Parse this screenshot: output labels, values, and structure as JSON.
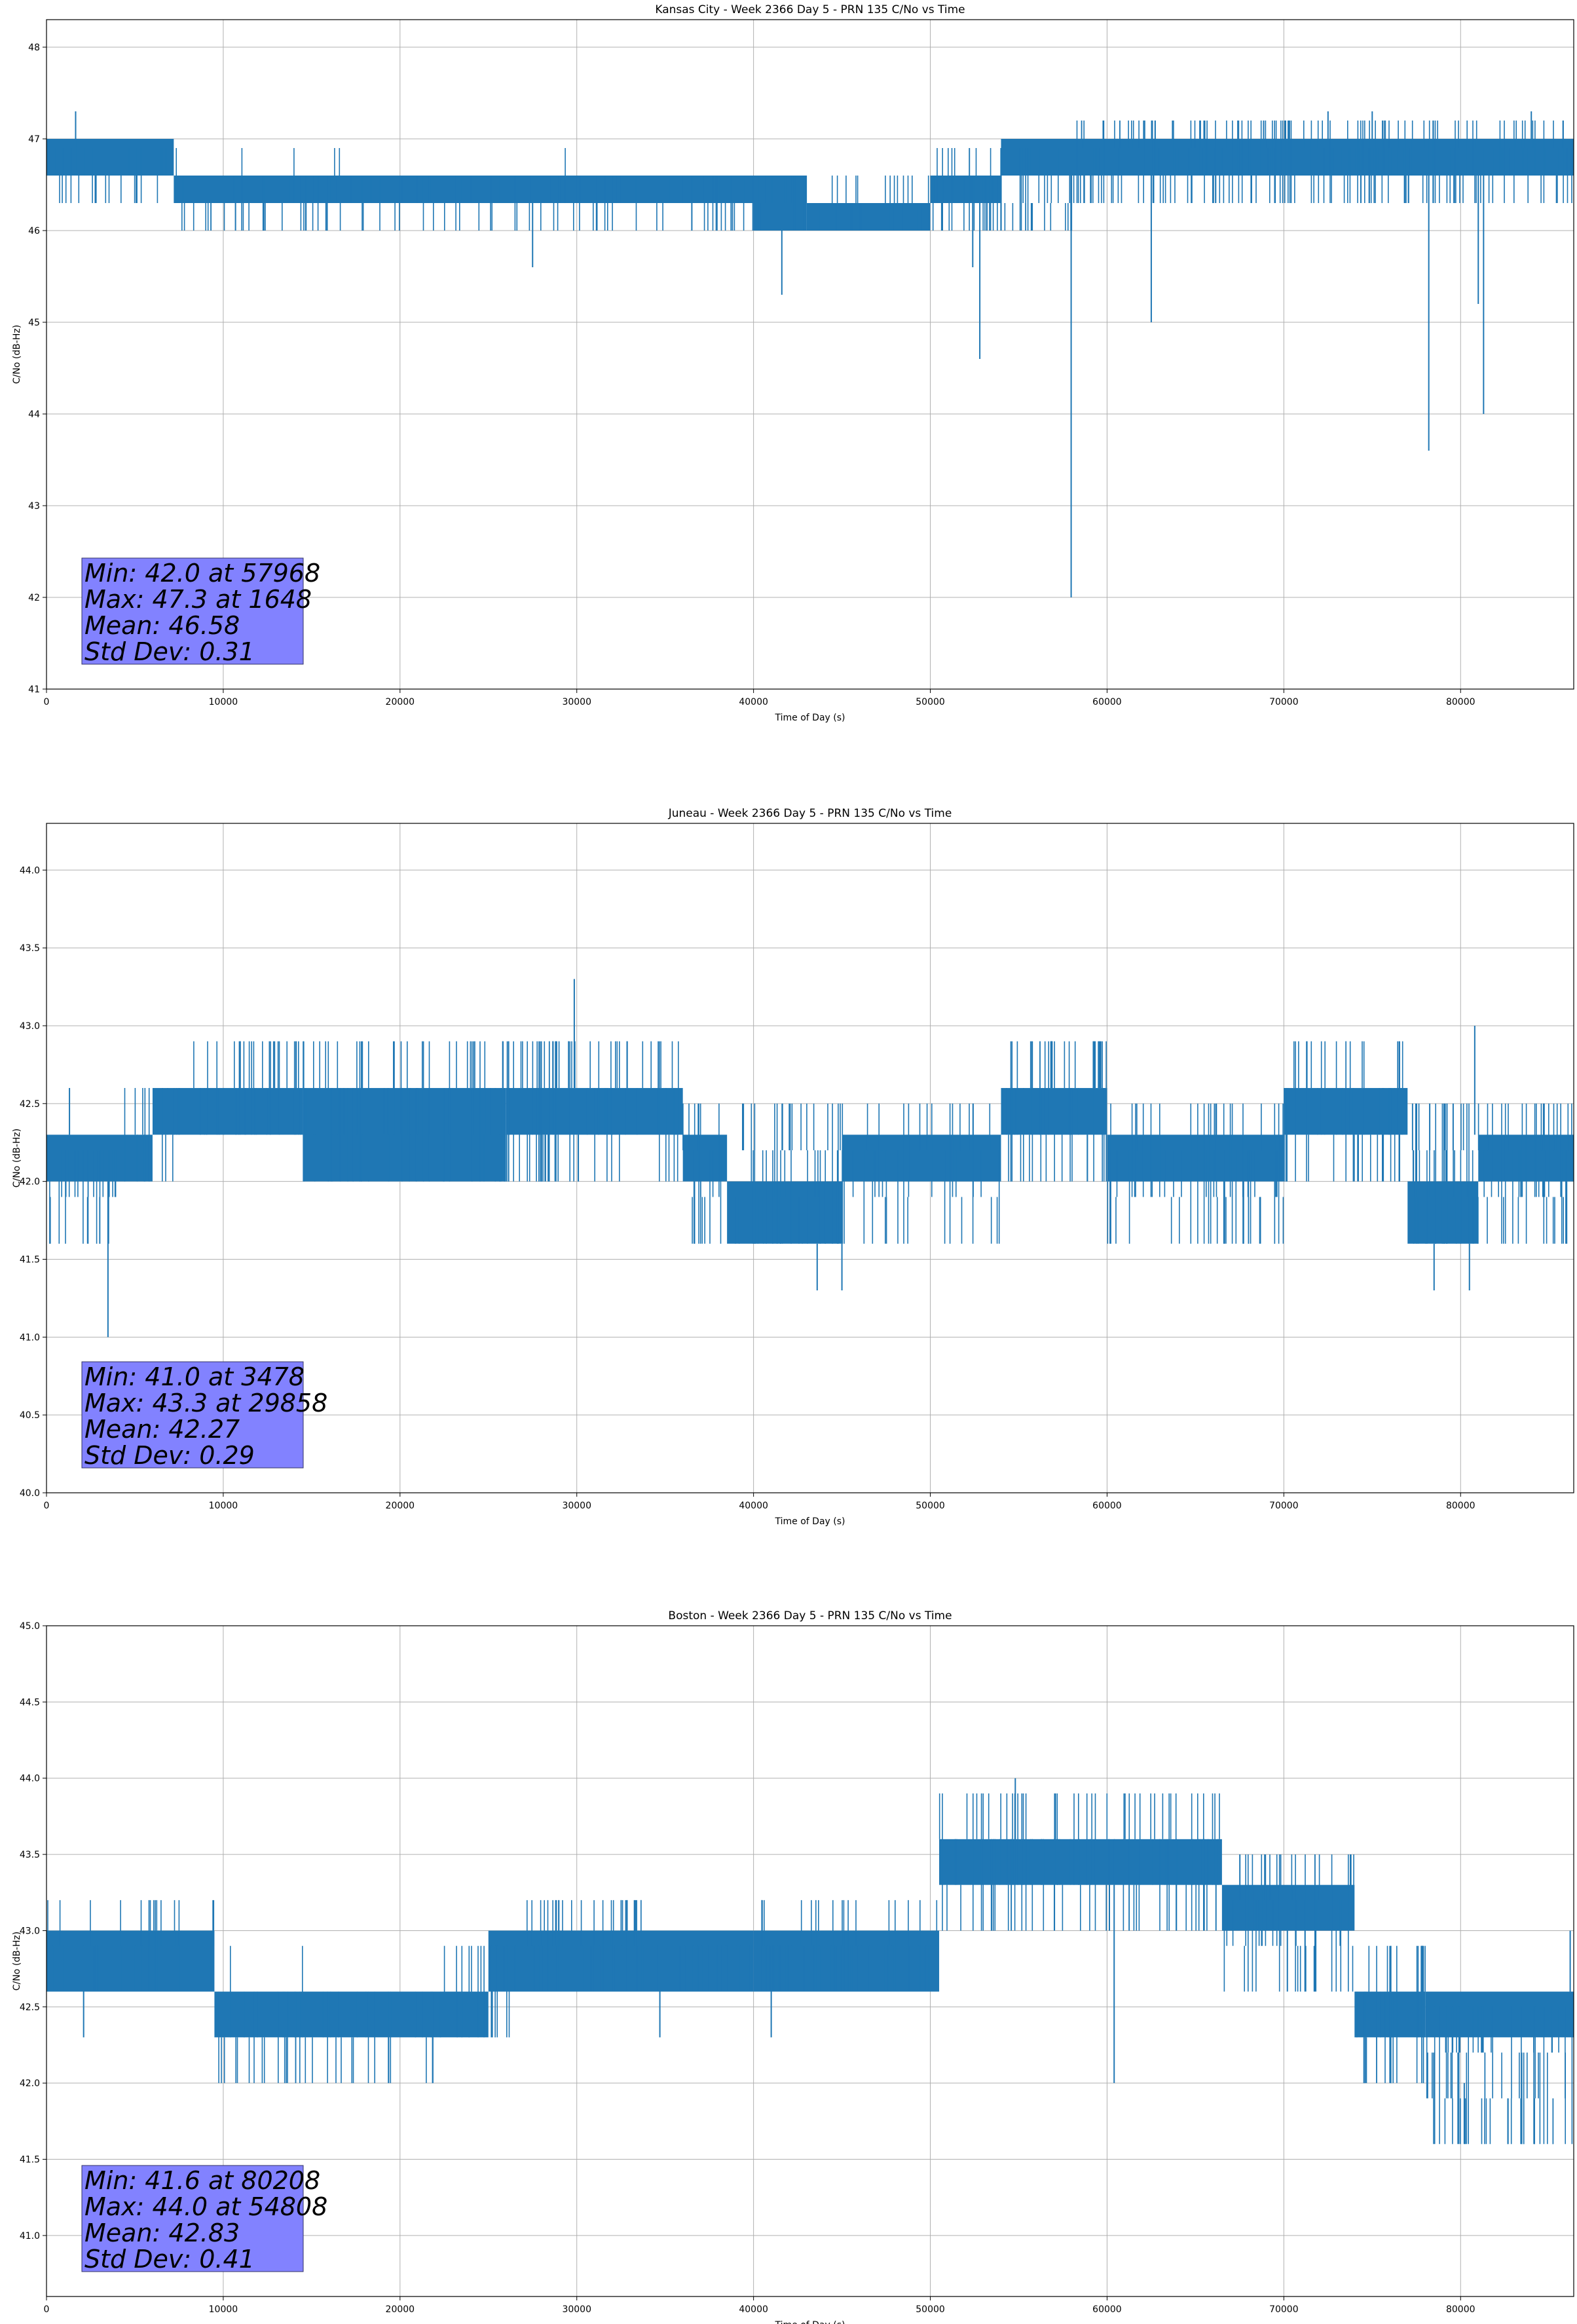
{
  "chart_data": [
    {
      "type": "line",
      "title": "Kansas City - Week 2366 Day 5 - PRN 135 C/No vs Time",
      "xlabel": "Time of Day (s)",
      "ylabel": "C/No (dB-Hz)",
      "xlim": [
        0,
        86400
      ],
      "ylim": [
        41,
        48.3
      ],
      "xticks": [
        0,
        10000,
        20000,
        30000,
        40000,
        50000,
        60000,
        70000,
        80000
      ],
      "yticks": [
        41,
        42,
        43,
        44,
        45,
        46,
        47,
        48
      ],
      "yticklabels": [
        "41",
        "42",
        "43",
        "44",
        "45",
        "46",
        "47",
        "48"
      ],
      "grid": true,
      "series_color": "#1f77b4",
      "stats": {
        "lines": [
          "Min: 42.0 at 57968",
          "Max: 47.3 at 1648",
          "Mean: 46.58",
          "Std Dev: 0.31"
        ],
        "box_color": "#8080ff",
        "placement": "bottom-left"
      },
      "segments": [
        {
          "x0": 0,
          "x1": 7200,
          "low": 46.6,
          "high": 47.0
        },
        {
          "x0": 7200,
          "x1": 40000,
          "low": 46.3,
          "high": 46.6
        },
        {
          "x0": 40000,
          "x1": 43000,
          "low": 46.0,
          "high": 46.6
        },
        {
          "x0": 43000,
          "x1": 50000,
          "low": 46.0,
          "high": 46.3
        },
        {
          "x0": 50000,
          "x1": 54000,
          "low": 46.3,
          "high": 46.6
        },
        {
          "x0": 54000,
          "x1": 86400,
          "low": 46.6,
          "high": 47.0
        }
      ],
      "spikes": [
        {
          "x": 1648,
          "low": 46.6,
          "y": 47.3
        },
        {
          "x": 2800,
          "low": 46.6,
          "y": 46.3
        },
        {
          "x": 27500,
          "low": 46.3,
          "y": 45.6
        },
        {
          "x": 41600,
          "low": 46.0,
          "y": 45.3
        },
        {
          "x": 52400,
          "low": 46.3,
          "y": 45.6
        },
        {
          "x": 52800,
          "low": 46.3,
          "y": 44.6
        },
        {
          "x": 57968,
          "low": 46.6,
          "y": 42.0
        },
        {
          "x": 62500,
          "low": 46.6,
          "y": 45.0
        },
        {
          "x": 78200,
          "low": 46.6,
          "y": 43.6
        },
        {
          "x": 81300,
          "low": 46.6,
          "y": 44.0
        },
        {
          "x": 81000,
          "low": 46.6,
          "y": 45.2
        },
        {
          "x": 72500,
          "low": 47.0,
          "y": 47.3
        },
        {
          "x": 75000,
          "low": 47.0,
          "y": 47.3
        },
        {
          "x": 84000,
          "low": 47.0,
          "y": 47.3
        }
      ],
      "bursts": [
        {
          "x0": 0,
          "x1": 7500,
          "lo": 46.3,
          "hi": 47.0,
          "n": 30
        },
        {
          "x0": 7500,
          "x1": 40000,
          "lo": 46.0,
          "hi": 46.6,
          "n": 120
        },
        {
          "x0": 8000,
          "x1": 38000,
          "lo": 46.3,
          "hi": 47.0,
          "n": 10
        },
        {
          "x0": 40000,
          "x1": 50000,
          "lo": 46.0,
          "hi": 46.6,
          "n": 50
        },
        {
          "x0": 50000,
          "x1": 58000,
          "lo": 46.0,
          "hi": 47.0,
          "n": 60
        },
        {
          "x0": 58000,
          "x1": 86400,
          "lo": 46.3,
          "hi": 47.3,
          "n": 240
        }
      ]
    },
    {
      "type": "line",
      "title": "Juneau - Week 2366 Day 5 - PRN 135 C/No vs Time",
      "xlabel": "Time of Day (s)",
      "ylabel": "C/No (dB-Hz)",
      "xlim": [
        0,
        86400
      ],
      "ylim": [
        40,
        44.3
      ],
      "xticks": [
        0,
        10000,
        20000,
        30000,
        40000,
        50000,
        60000,
        70000,
        80000
      ],
      "yticks": [
        40.0,
        40.5,
        41.0,
        41.5,
        42.0,
        42.5,
        43.0,
        43.5,
        44.0
      ],
      "yticklabels": [
        "40.0",
        "40.5",
        "41.0",
        "41.5",
        "42.0",
        "42.5",
        "43.0",
        "43.5",
        "44.0"
      ],
      "grid": true,
      "series_color": "#1f77b4",
      "stats": {
        "lines": [
          "Min: 41.0 at 3478",
          "Max: 43.3 at 29858",
          "Mean: 42.27",
          "Std Dev: 0.29"
        ],
        "box_color": "#8080ff",
        "placement": "bottom-left"
      },
      "segments": [
        {
          "x0": 0,
          "x1": 6000,
          "low": 42.0,
          "high": 42.3
        },
        {
          "x0": 6000,
          "x1": 14500,
          "low": 42.3,
          "high": 42.6
        },
        {
          "x0": 14500,
          "x1": 26000,
          "low": 42.0,
          "high": 42.6
        },
        {
          "x0": 26000,
          "x1": 36000,
          "low": 42.3,
          "high": 42.6
        },
        {
          "x0": 36000,
          "x1": 38500,
          "low": 42.0,
          "high": 42.3
        },
        {
          "x0": 38500,
          "x1": 45000,
          "low": 41.6,
          "high": 42.0
        },
        {
          "x0": 45000,
          "x1": 54000,
          "low": 42.0,
          "high": 42.3
        },
        {
          "x0": 54000,
          "x1": 60000,
          "low": 42.3,
          "high": 42.6
        },
        {
          "x0": 60000,
          "x1": 70000,
          "low": 42.0,
          "high": 42.3
        },
        {
          "x0": 70000,
          "x1": 77000,
          "low": 42.3,
          "high": 42.6
        },
        {
          "x0": 77000,
          "x1": 81000,
          "low": 41.6,
          "high": 42.0
        },
        {
          "x0": 81000,
          "x1": 86400,
          "low": 42.0,
          "high": 42.3
        }
      ],
      "spikes": [
        {
          "x": 3478,
          "low": 42.0,
          "y": 41.0
        },
        {
          "x": 1300,
          "low": 42.3,
          "y": 42.6
        },
        {
          "x": 29858,
          "low": 42.6,
          "y": 43.3
        },
        {
          "x": 43600,
          "low": 41.6,
          "y": 41.3
        },
        {
          "x": 45000,
          "low": 41.6,
          "y": 41.3
        },
        {
          "x": 78500,
          "low": 41.6,
          "y": 41.3
        },
        {
          "x": 80500,
          "low": 41.6,
          "y": 41.3
        },
        {
          "x": 80800,
          "low": 42.3,
          "y": 43.0
        },
        {
          "x": 86000,
          "low": 42.0,
          "y": 41.6
        }
      ],
      "bursts": [
        {
          "x0": 0,
          "x1": 4000,
          "lo": 41.6,
          "hi": 42.3,
          "n": 25
        },
        {
          "x0": 4000,
          "x1": 8000,
          "lo": 42.0,
          "hi": 42.6,
          "n": 20
        },
        {
          "x0": 8000,
          "x1": 14500,
          "lo": 42.3,
          "hi": 43.0,
          "n": 45
        },
        {
          "x0": 14500,
          "x1": 26000,
          "lo": 42.0,
          "hi": 43.0,
          "n": 70
        },
        {
          "x0": 26000,
          "x1": 36000,
          "lo": 42.0,
          "hi": 43.0,
          "n": 80
        },
        {
          "x0": 36000,
          "x1": 45000,
          "lo": 41.6,
          "hi": 42.6,
          "n": 60
        },
        {
          "x0": 45000,
          "x1": 54000,
          "lo": 41.6,
          "hi": 42.6,
          "n": 40
        },
        {
          "x0": 54000,
          "x1": 60000,
          "lo": 42.0,
          "hi": 43.0,
          "n": 50
        },
        {
          "x0": 60000,
          "x1": 70000,
          "lo": 41.6,
          "hi": 42.6,
          "n": 60
        },
        {
          "x0": 70000,
          "x1": 77000,
          "lo": 42.0,
          "hi": 43.0,
          "n": 45
        },
        {
          "x0": 77000,
          "x1": 86400,
          "lo": 41.6,
          "hi": 42.6,
          "n": 80
        }
      ]
    },
    {
      "type": "line",
      "title": "Boston - Week 2366 Day 5 - PRN 135 C/No vs Time",
      "xlabel": "Time of Day (s)",
      "ylabel": "C/No (dB-Hz)",
      "xlim": [
        0,
        86400
      ],
      "ylim": [
        40.6,
        45.0
      ],
      "xticks": [
        0,
        10000,
        20000,
        30000,
        40000,
        50000,
        60000,
        70000,
        80000
      ],
      "yticks": [
        41.0,
        41.5,
        42.0,
        42.5,
        43.0,
        43.5,
        44.0,
        44.5,
        45.0
      ],
      "yticklabels": [
        "41.0",
        "41.5",
        "42.0",
        "42.5",
        "43.0",
        "43.5",
        "44.0",
        "44.5",
        "45.0"
      ],
      "grid": true,
      "series_color": "#1f77b4",
      "stats": {
        "lines": [
          "Min: 41.6 at 80208",
          "Max: 44.0 at 54808",
          "Mean: 42.83",
          "Std Dev: 0.41"
        ],
        "box_color": "#8080ff",
        "placement": "bottom-left"
      },
      "segments": [
        {
          "x0": 0,
          "x1": 9500,
          "low": 42.6,
          "high": 43.0
        },
        {
          "x0": 9500,
          "x1": 25000,
          "low": 42.3,
          "high": 42.6
        },
        {
          "x0": 25000,
          "x1": 40000,
          "low": 42.6,
          "high": 43.0
        },
        {
          "x0": 40000,
          "x1": 50500,
          "low": 42.6,
          "high": 43.0
        },
        {
          "x0": 50500,
          "x1": 66500,
          "low": 43.3,
          "high": 43.6
        },
        {
          "x0": 66500,
          "x1": 74000,
          "low": 43.0,
          "high": 43.3
        },
        {
          "x0": 74000,
          "x1": 78000,
          "low": 42.3,
          "high": 42.6
        },
        {
          "x0": 78000,
          "x1": 86400,
          "low": 42.3,
          "high": 42.6
        }
      ],
      "spikes": [
        {
          "x": 54808,
          "low": 43.6,
          "y": 44.0
        },
        {
          "x": 60400,
          "low": 43.3,
          "y": 42.0
        },
        {
          "x": 80208,
          "low": 42.0,
          "y": 41.6
        },
        {
          "x": 2100,
          "low": 42.6,
          "y": 42.3
        },
        {
          "x": 34700,
          "low": 42.6,
          "y": 42.3
        },
        {
          "x": 41000,
          "low": 42.6,
          "y": 42.3
        },
        {
          "x": 70200,
          "low": 43.0,
          "y": 42.6
        },
        {
          "x": 86200,
          "low": 42.6,
          "y": 43.0
        }
      ],
      "bursts": [
        {
          "x0": 0,
          "x1": 9500,
          "lo": 42.6,
          "hi": 43.3,
          "n": 30
        },
        {
          "x0": 9500,
          "x1": 22500,
          "lo": 42.0,
          "hi": 42.6,
          "n": 55
        },
        {
          "x0": 9500,
          "x1": 16000,
          "lo": 42.3,
          "hi": 43.0,
          "n": 8
        },
        {
          "x0": 22500,
          "x1": 26500,
          "lo": 42.3,
          "hi": 43.0,
          "n": 20
        },
        {
          "x0": 26500,
          "x1": 34000,
          "lo": 42.6,
          "hi": 43.3,
          "n": 55
        },
        {
          "x0": 34000,
          "x1": 50500,
          "lo": 42.6,
          "hi": 43.0,
          "n": 60
        },
        {
          "x0": 40000,
          "x1": 50500,
          "lo": 42.6,
          "hi": 43.3,
          "n": 30
        },
        {
          "x0": 50500,
          "x1": 66500,
          "lo": 43.0,
          "hi": 44.0,
          "n": 110
        },
        {
          "x0": 66500,
          "x1": 74000,
          "lo": 42.6,
          "hi": 43.6,
          "n": 45
        },
        {
          "x0": 74000,
          "x1": 78000,
          "lo": 42.0,
          "hi": 43.0,
          "n": 35
        },
        {
          "x0": 78000,
          "x1": 86400,
          "lo": 41.6,
          "hi": 42.6,
          "n": 70
        }
      ]
    }
  ]
}
